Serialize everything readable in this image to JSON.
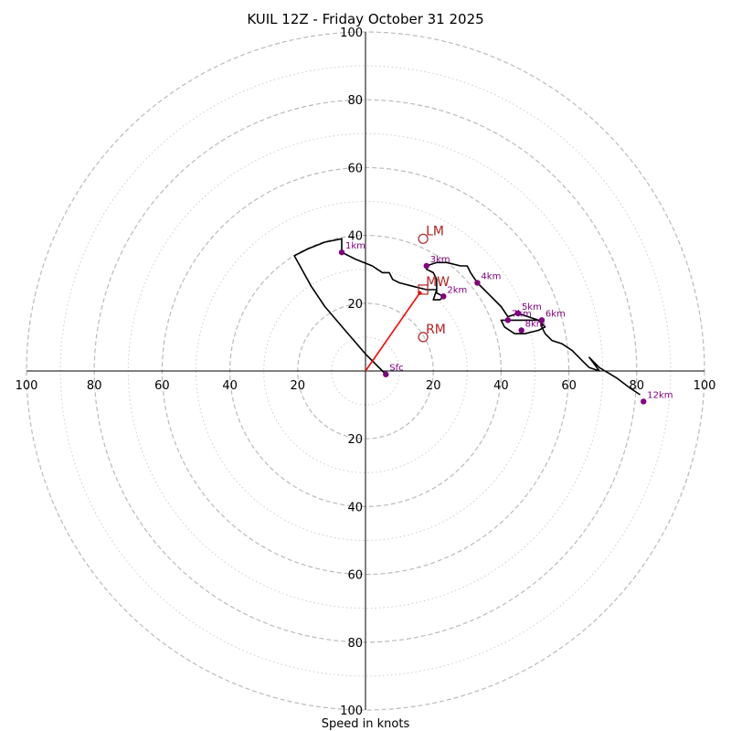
{
  "chart_data": {
    "type": "hodograph",
    "title": "KUIL 12Z - Friday October 31 2025",
    "xlabel": "Speed in knots",
    "xlim": [
      -100,
      100
    ],
    "ylim": [
      -100,
      100
    ],
    "major_rings": [
      20,
      40,
      60,
      80,
      100
    ],
    "minor_rings": [
      10,
      30,
      50,
      70,
      90
    ],
    "x_tick_labels": [
      "100",
      "80",
      "60",
      "40",
      "20",
      "20",
      "40",
      "60",
      "80",
      "100"
    ],
    "y_tick_labels_up": [
      "20",
      "40",
      "60",
      "80",
      "100"
    ],
    "y_tick_labels_down": [
      "20",
      "40",
      "60",
      "80",
      "100"
    ],
    "trace": [
      [
        6,
        -1
      ],
      [
        5,
        0
      ],
      [
        0,
        5
      ],
      [
        -6,
        12
      ],
      [
        -12,
        19
      ],
      [
        -16,
        25
      ],
      [
        -21,
        34
      ],
      [
        -17,
        36
      ],
      [
        -12,
        38
      ],
      [
        -7,
        39
      ],
      [
        -7,
        35
      ],
      [
        -3,
        33
      ],
      [
        2,
        31
      ],
      [
        5,
        29
      ],
      [
        7,
        29
      ],
      [
        8,
        27
      ],
      [
        10,
        26
      ],
      [
        14,
        25
      ],
      [
        18,
        24
      ],
      [
        21,
        24
      ],
      [
        20,
        21
      ],
      [
        22,
        21
      ],
      [
        23,
        22
      ],
      [
        21,
        23
      ],
      [
        21,
        25
      ],
      [
        21,
        27
      ],
      [
        20,
        29
      ],
      [
        18,
        30
      ],
      [
        18,
        31
      ],
      [
        21,
        32
      ],
      [
        24,
        32
      ],
      [
        28,
        31
      ],
      [
        30,
        31
      ],
      [
        31,
        29
      ],
      [
        33,
        26
      ],
      [
        36,
        23
      ],
      [
        40,
        19
      ],
      [
        42,
        16
      ],
      [
        45,
        17
      ],
      [
        48,
        16
      ],
      [
        51,
        15
      ],
      [
        53,
        13
      ],
      [
        51,
        12
      ],
      [
        47,
        11
      ],
      [
        44,
        11
      ],
      [
        41,
        13
      ],
      [
        40,
        15
      ],
      [
        45,
        15
      ],
      [
        52,
        15
      ],
      [
        52,
        13
      ],
      [
        53,
        11
      ],
      [
        55,
        9
      ],
      [
        58,
        8
      ],
      [
        61,
        6
      ],
      [
        64,
        3
      ],
      [
        66,
        1
      ],
      [
        69,
        0
      ],
      [
        66,
        4
      ],
      [
        69,
        1
      ],
      [
        74,
        -2
      ],
      [
        78,
        -5
      ],
      [
        81,
        -7
      ]
    ],
    "height_markers": [
      {
        "label": "Sfc",
        "x": 6,
        "y": -1
      },
      {
        "label": "1km",
        "x": -7,
        "y": 35
      },
      {
        "label": "2km",
        "x": 23,
        "y": 22
      },
      {
        "label": "3km",
        "x": 18,
        "y": 31
      },
      {
        "label": "4km",
        "x": 33,
        "y": 26
      },
      {
        "label": "5km",
        "x": 45,
        "y": 17
      },
      {
        "label": "6km",
        "x": 52,
        "y": 15
      },
      {
        "label": "7km",
        "x": 42,
        "y": 15
      },
      {
        "label": "8km",
        "x": 46,
        "y": 12
      },
      {
        "label": "12km",
        "x": 82,
        "y": -9
      }
    ],
    "motion_points": [
      {
        "label": "LM",
        "marker": "circle",
        "x": 17,
        "y": 39
      },
      {
        "label": "MW",
        "marker": "square",
        "x": 17,
        "y": 24
      },
      {
        "label": "RM",
        "marker": "circle",
        "x": 17,
        "y": 10
      }
    ],
    "motion_vector": {
      "from": [
        0,
        0
      ],
      "to": [
        16,
        23
      ]
    },
    "colors": {
      "trace": "#000000",
      "markers": "#800080",
      "motion": "#b22222",
      "vector": "#ff0000",
      "rings": "#bbbbbb",
      "axis": "#000000"
    }
  }
}
